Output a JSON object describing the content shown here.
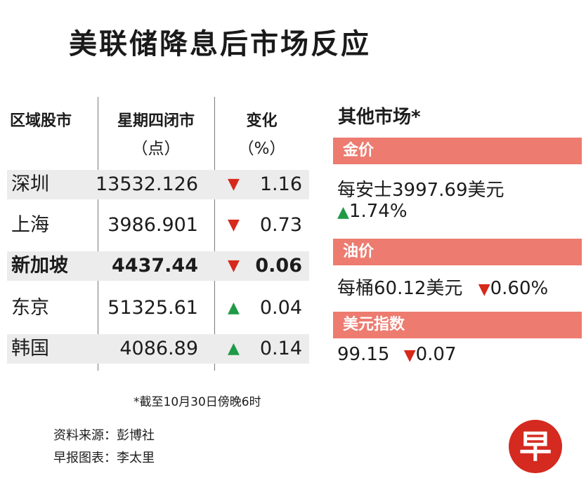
{
  "title": "美联储降息后市场反应",
  "table": {
    "headers": {
      "market": "区域股市",
      "close": "星期四闭市",
      "close_unit": "（点）",
      "change": "变化",
      "change_unit": "（%）"
    },
    "rows": [
      {
        "name": "深圳",
        "close": "13532.126",
        "direction": "▼",
        "change": "1.16",
        "dir_type": "down",
        "bold": false
      },
      {
        "name": "上海",
        "close": "3986.901",
        "direction": "▼",
        "change": "0.73",
        "dir_type": "down",
        "bold": false
      },
      {
        "name": "新加坡",
        "close": "4437.44",
        "direction": "▼",
        "change": "0.06",
        "dir_type": "down",
        "bold": true
      },
      {
        "name": "东京",
        "close": "51325.61",
        "direction": "▲",
        "change": "0.04",
        "dir_type": "up",
        "bold": false
      },
      {
        "name": "韩国",
        "close": "4086.89",
        "direction": "▲",
        "change": "0.14",
        "dir_type": "up",
        "bold": false
      }
    ]
  },
  "other_markets": {
    "title": "其他市场*",
    "gold": {
      "label": "金价",
      "line1": "每安士3997.69美元",
      "arrow": "▲",
      "change": "1.74%"
    },
    "oil": {
      "label": "油价",
      "price": "每桶60.12美元",
      "arrow": "▼",
      "change": "0.60%"
    },
    "usd": {
      "label": "美元指数",
      "value": "99.15",
      "arrow": "▼",
      "change": "0.07"
    }
  },
  "footnote": "*截至10月30日傍晚6时",
  "source": "资料来源：彭博社",
  "graphic_credit": "早报图表：李太里",
  "logo_char": "早",
  "colors": {
    "down": "#d7281c",
    "up": "#1f9a46",
    "accent_bar": "#ed7b70",
    "shade": "#ececec",
    "logo": "#d42a1f"
  },
  "chart_data": {
    "type": "table",
    "title": "美联储降息后市场反应",
    "columns": [
      "区域股市",
      "星期四闭市（点）",
      "变化（%）"
    ],
    "rows": [
      [
        "深圳",
        13532.126,
        -1.16
      ],
      [
        "上海",
        3986.901,
        -0.73
      ],
      [
        "新加坡",
        4437.44,
        -0.06
      ],
      [
        "东京",
        51325.61,
        0.04
      ],
      [
        "韩国",
        4086.89,
        0.14
      ]
    ],
    "other_markets": [
      {
        "name": "金价",
        "value": 3997.69,
        "change_pct": 1.74
      },
      {
        "name": "油价",
        "value": 60.12,
        "change_pct": -0.6
      },
      {
        "name": "美元指数",
        "value": 99.15,
        "change": -0.07
      }
    ]
  }
}
